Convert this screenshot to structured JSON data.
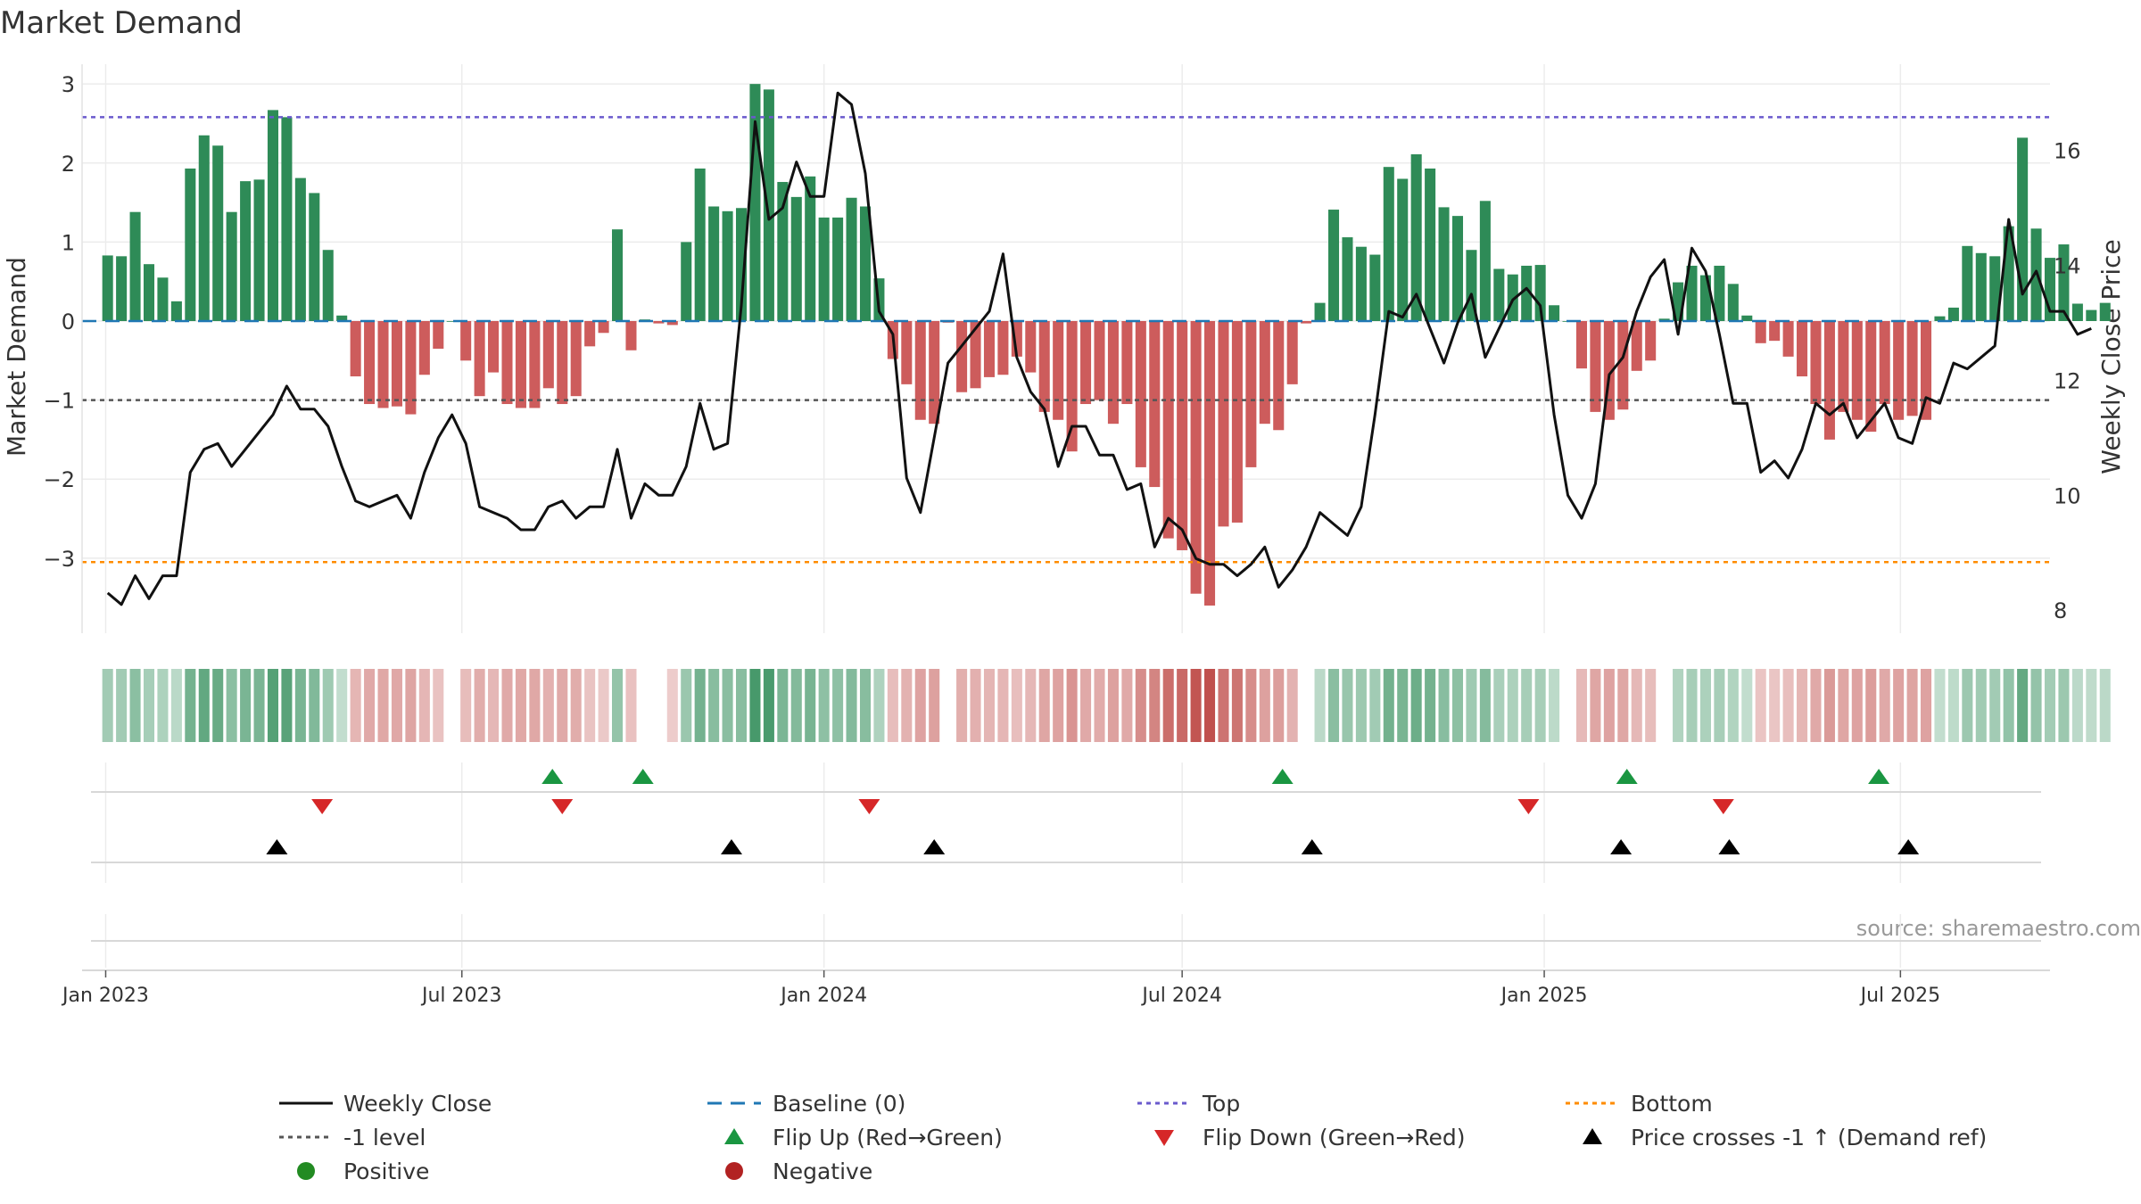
{
  "chart_data": {
    "type": "bar+line",
    "title": "Market Demand",
    "ylabel_left": "Market Demand",
    "ylabel_right": "Weekly Close Price",
    "source": "source: sharemaestro.com",
    "x_start": "2023-01-02",
    "x_step_days": 7,
    "x_ticks": [
      {
        "date": "2023-01-01",
        "label": "Jan 2023"
      },
      {
        "date": "2023-07-01",
        "label": "Jul 2023"
      },
      {
        "date": "2024-01-01",
        "label": "Jan 2024"
      },
      {
        "date": "2024-07-01",
        "label": "Jul 2024"
      },
      {
        "date": "2025-01-01",
        "label": "Jan 2025"
      },
      {
        "date": "2025-07-01",
        "label": "Jul 2025"
      }
    ],
    "x_range": [
      "2022-12-20",
      "2025-09-15"
    ],
    "left_axis": {
      "ylim": [
        -3.95,
        3.25
      ],
      "ticks": [
        3,
        2,
        1,
        0,
        -1,
        -2,
        -3
      ],
      "tick_labels": [
        "3",
        "2",
        "1",
        "0",
        "−1",
        "−2",
        "−3"
      ]
    },
    "right_axis": {
      "ylim": [
        7.6,
        17.5
      ],
      "ticks": [
        16,
        14,
        12,
        10,
        8
      ],
      "tick_labels": [
        "16",
        "14",
        "12",
        "10",
        "8"
      ]
    },
    "reference_lines": {
      "top": 2.58,
      "bottom": -3.05,
      "minus_one": -1,
      "baseline": 0
    },
    "demand": [
      0.83,
      0.82,
      1.38,
      0.72,
      0.55,
      0.25,
      1.93,
      2.35,
      2.22,
      1.38,
      1.77,
      1.79,
      2.67,
      2.58,
      1.81,
      1.62,
      0.9,
      0.07,
      -0.7,
      -1.05,
      -1.1,
      -1.08,
      -1.18,
      -0.68,
      -0.35,
      0.0,
      -0.5,
      -0.95,
      -0.65,
      -1.05,
      -1.1,
      -1.1,
      -0.85,
      -1.05,
      -0.95,
      -0.32,
      -0.15,
      1.16,
      -0.37,
      0.02,
      -0.03,
      -0.05,
      1.0,
      1.93,
      1.45,
      1.39,
      1.43,
      3.0,
      2.93,
      1.76,
      1.57,
      1.83,
      1.31,
      1.31,
      1.56,
      1.45,
      0.54,
      -0.48,
      -0.8,
      -1.25,
      -1.3,
      -0.02,
      -0.9,
      -0.85,
      -0.71,
      -0.68,
      -0.45,
      -0.65,
      -1.15,
      -1.25,
      -1.65,
      -1.05,
      -1.0,
      -1.3,
      -1.05,
      -1.85,
      -2.1,
      -2.75,
      -2.9,
      -3.45,
      -3.6,
      -2.6,
      -2.55,
      -1.85,
      -1.3,
      -1.38,
      -0.8,
      -0.03,
      0.23,
      1.41,
      1.06,
      0.94,
      0.84,
      1.95,
      1.8,
      2.11,
      1.93,
      1.44,
      1.33,
      0.9,
      1.52,
      0.66,
      0.59,
      0.7,
      0.71,
      0.2,
      0.0,
      -0.6,
      -1.15,
      -1.25,
      -1.12,
      -0.63,
      -0.5,
      0.03,
      0.49,
      0.7,
      0.58,
      0.7,
      0.47,
      0.07,
      -0.28,
      -0.25,
      -0.45,
      -0.7,
      -1.05,
      -1.5,
      -1.15,
      -1.25,
      -1.4,
      -1.05,
      -1.25,
      -1.2,
      -1.25,
      0.06,
      0.17,
      0.95,
      0.86,
      0.82,
      1.2,
      2.32,
      1.17,
      0.8,
      0.97,
      0.22,
      0.14,
      0.23
    ],
    "weekly_close": [
      8.3,
      8.1,
      8.6,
      8.2,
      8.6,
      8.6,
      10.4,
      10.8,
      10.9,
      10.5,
      10.8,
      11.1,
      11.4,
      11.9,
      11.5,
      11.5,
      11.2,
      10.5,
      9.9,
      9.8,
      9.9,
      10.0,
      9.6,
      10.4,
      11.0,
      11.4,
      10.9,
      9.8,
      9.7,
      9.6,
      9.4,
      9.4,
      9.8,
      9.9,
      9.6,
      9.8,
      9.8,
      10.8,
      9.6,
      10.2,
      10.0,
      10.0,
      10.5,
      11.6,
      10.8,
      10.9,
      13.3,
      16.5,
      14.8,
      15.0,
      15.8,
      15.2,
      15.2,
      17.0,
      16.8,
      15.6,
      13.2,
      12.8,
      10.3,
      9.7,
      11.0,
      12.3,
      12.6,
      12.9,
      13.2,
      14.2,
      12.4,
      11.8,
      11.5,
      10.5,
      11.2,
      11.2,
      10.7,
      10.7,
      10.1,
      10.2,
      9.1,
      9.6,
      9.4,
      8.9,
      8.8,
      8.8,
      8.6,
      8.8,
      9.1,
      8.4,
      8.7,
      9.1,
      9.7,
      9.5,
      9.3,
      9.8,
      11.4,
      13.2,
      13.1,
      13.5,
      12.9,
      12.3,
      13.0,
      13.5,
      12.4,
      12.9,
      13.4,
      13.6,
      13.3,
      11.4,
      10.0,
      9.6,
      10.2,
      12.1,
      12.4,
      13.2,
      13.8,
      14.1,
      12.8,
      14.3,
      13.9,
      12.8,
      11.6,
      11.6,
      10.4,
      10.6,
      10.3,
      10.8,
      11.6,
      11.4,
      11.6,
      11.0,
      11.3,
      11.6,
      11.0,
      10.9,
      11.7,
      11.6,
      12.3,
      12.2,
      12.4,
      12.6,
      14.8,
      13.5,
      13.9,
      13.2,
      13.2,
      12.8,
      12.9
    ]
  },
  "event_rows": {
    "flip_up_dates": [
      "2023-08-16",
      "2023-10-01",
      "2024-08-21",
      "2025-02-12",
      "2025-06-20"
    ],
    "flip_down_dates": [
      "2023-04-21",
      "2023-08-21",
      "2024-01-24",
      "2024-12-24",
      "2025-04-02"
    ],
    "price_cross_dates": [
      "2023-03-29",
      "2023-11-15",
      "2024-02-26",
      "2024-09-05",
      "2025-02-09",
      "2025-04-05",
      "2025-07-05"
    ]
  },
  "legend": {
    "weekly_close": "Weekly Close",
    "baseline": "Baseline (0)",
    "top": "Top",
    "bottom": "Bottom",
    "minus_one": "-1 level",
    "flip_up": "Flip Up (Red→Green)",
    "flip_down": "Flip Down (Green→Red)",
    "price_cross": "Price crosses -1 ↑ (Demand ref)",
    "positive": "Positive",
    "negative": "Negative"
  },
  "colors": {
    "positive": "#2e8b57",
    "negative": "#cd5c5c",
    "line": "#111111",
    "baseline": "#1f77b4",
    "top": "#6a5acd",
    "bottom": "#ff8c00",
    "minus_one": "#555555",
    "flip_up": "#1a9641",
    "flip_down": "#d62728",
    "price_cross": "#000000",
    "positive_dot": "#228b22",
    "negative_dot": "#b22222"
  }
}
